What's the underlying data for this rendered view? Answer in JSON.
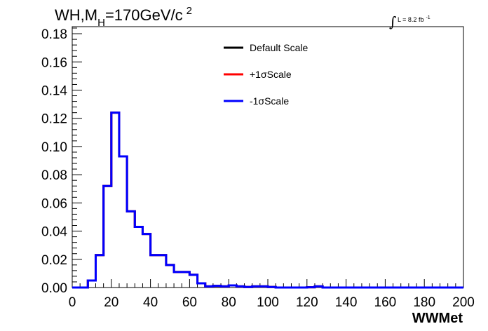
{
  "chart_data": {
    "type": "line",
    "style": "step-histogram",
    "title": {
      "prefix": "WH,M",
      "sub": "H",
      "suffix": "=170GeV/c",
      "sup": "2"
    },
    "luminosity": {
      "symbol": "∫",
      "text": "L = 8.2 fb",
      "sup": "-1"
    },
    "xlabel": "WWMet",
    "ylabel": "",
    "xlim": [
      0,
      200
    ],
    "ylim": [
      0,
      0.185
    ],
    "xticks": [
      0,
      20,
      40,
      60,
      80,
      100,
      120,
      140,
      160,
      180,
      200
    ],
    "xtick_labels": [
      "0",
      "20",
      "40",
      "60",
      "80",
      "100",
      "120",
      "140",
      "160",
      "180",
      "200"
    ],
    "yticks": [
      0,
      0.02,
      0.04,
      0.06,
      0.08,
      0.1,
      0.12,
      0.14,
      0.16,
      0.18
    ],
    "ytick_labels": [
      "0.00",
      "0.02",
      "0.04",
      "0.06",
      "0.08",
      "0.10",
      "0.12",
      "0.14",
      "0.16",
      "0.18"
    ],
    "grid": false,
    "legend_position": "top-center",
    "bin_edges": [
      0,
      4,
      8,
      12,
      16,
      20,
      24,
      28,
      32,
      36,
      40,
      44,
      48,
      52,
      56,
      60,
      64,
      68,
      72,
      76,
      80,
      84,
      88,
      92,
      96,
      100,
      104,
      108,
      112,
      116,
      120,
      124,
      128,
      132,
      136,
      140,
      144,
      148,
      152,
      156,
      160,
      164,
      168,
      172,
      176,
      180,
      184,
      188,
      192,
      196,
      200
    ],
    "series": [
      {
        "name": "Default Scale",
        "color": "#000000",
        "values": [
          0,
          0,
          0.005,
          0.023,
          0.072,
          0.124,
          0.093,
          0.054,
          0.043,
          0.038,
          0.023,
          0.023,
          0.016,
          0.011,
          0.011,
          0.009,
          0.003,
          0.0008,
          0.0012,
          0.0008,
          0.0015,
          0.0008,
          0.0004,
          0.0008,
          0.0008,
          0.0004,
          0,
          0,
          0,
          0,
          0.0002,
          0.0008,
          0,
          0,
          0,
          0,
          0,
          0,
          0,
          0,
          0,
          0,
          0,
          0,
          0,
          0,
          0,
          0,
          0,
          0
        ]
      },
      {
        "name": "+1σScale",
        "color": "#ff0000",
        "values": [
          0,
          0,
          0.005,
          0.023,
          0.072,
          0.124,
          0.093,
          0.054,
          0.043,
          0.038,
          0.023,
          0.023,
          0.016,
          0.011,
          0.011,
          0.009,
          0.003,
          0.0008,
          0.0012,
          0.0008,
          0.0015,
          0.0008,
          0.0004,
          0.0008,
          0.0008,
          0.0004,
          0,
          0,
          0,
          0,
          0.0002,
          0.0008,
          0,
          0,
          0,
          0,
          0,
          0,
          0,
          0,
          0,
          0,
          0,
          0,
          0,
          0,
          0,
          0,
          0,
          0
        ]
      },
      {
        "name": "-1σScale",
        "color": "#0000ff",
        "values": [
          0,
          0,
          0.005,
          0.023,
          0.072,
          0.124,
          0.093,
          0.054,
          0.043,
          0.038,
          0.023,
          0.023,
          0.016,
          0.011,
          0.011,
          0.009,
          0.003,
          0.0008,
          0.0012,
          0.0008,
          0.0015,
          0.0008,
          0.0004,
          0.0008,
          0.0008,
          0.0004,
          0,
          0,
          0,
          0,
          0.0002,
          0.0008,
          0,
          0,
          0,
          0,
          0,
          0,
          0,
          0,
          0,
          0,
          0,
          0,
          0,
          0,
          0,
          0,
          0,
          0
        ]
      }
    ]
  }
}
